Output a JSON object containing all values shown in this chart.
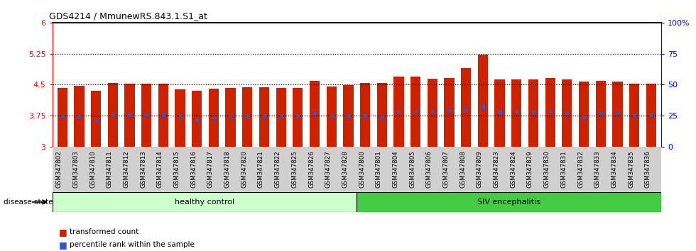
{
  "title": "GDS4214 / MmunewRS.843.1.S1_at",
  "categories": [
    "GSM347802",
    "GSM347803",
    "GSM347810",
    "GSM347811",
    "GSM347812",
    "GSM347813",
    "GSM347814",
    "GSM347815",
    "GSM347816",
    "GSM347817",
    "GSM347818",
    "GSM347820",
    "GSM347821",
    "GSM347822",
    "GSM347825",
    "GSM347826",
    "GSM347827",
    "GSM347828",
    "GSM347800",
    "GSM347801",
    "GSM347804",
    "GSM347805",
    "GSM347806",
    "GSM347807",
    "GSM347808",
    "GSM347809",
    "GSM347823",
    "GSM347824",
    "GSM347829",
    "GSM347830",
    "GSM347831",
    "GSM347832",
    "GSM347833",
    "GSM347834",
    "GSM347835",
    "GSM347836"
  ],
  "bar_values": [
    4.43,
    4.47,
    4.35,
    4.55,
    4.53,
    4.53,
    4.53,
    4.38,
    4.36,
    4.4,
    4.43,
    4.44,
    4.44,
    4.42,
    4.43,
    4.6,
    4.46,
    4.49,
    4.55,
    4.55,
    4.7,
    4.7,
    4.65,
    4.67,
    4.9,
    5.22,
    4.63,
    4.62,
    4.62,
    4.67,
    4.62,
    4.58,
    4.59,
    4.57,
    4.52,
    4.52
  ],
  "blue_dot_values": [
    3.75,
    3.73,
    3.65,
    3.79,
    3.79,
    3.79,
    3.78,
    3.76,
    3.65,
    3.7,
    3.75,
    3.75,
    3.75,
    3.75,
    3.75,
    3.8,
    3.76,
    3.76,
    3.75,
    3.72,
    3.86,
    3.85,
    3.85,
    3.87,
    3.9,
    3.97,
    3.84,
    3.85,
    3.84,
    3.85,
    3.82,
    3.72,
    3.8,
    3.8,
    3.78,
    3.78
  ],
  "n_healthy": 18,
  "n_siv": 18,
  "bar_color": "#cc2200",
  "blue_dot_color": "#3355cc",
  "healthy_bg": "#ccffcc",
  "siv_bg": "#44cc44",
  "healthy_label": "healthy control",
  "siv_label": "SIV encephalitis",
  "ymin": 3.0,
  "ymax": 6.0,
  "yticks": [
    3.0,
    3.75,
    4.5,
    5.25,
    6.0
  ],
  "ytick_labels": [
    "3",
    "3.75",
    "4.5",
    "5.25",
    "6"
  ],
  "right_yticks": [
    0,
    25,
    50,
    75,
    100
  ],
  "right_ytick_labels": [
    "0",
    "25",
    "50",
    "75",
    "100%"
  ],
  "hlines": [
    3.75,
    4.5,
    5.25
  ],
  "disease_state_label": "disease state"
}
